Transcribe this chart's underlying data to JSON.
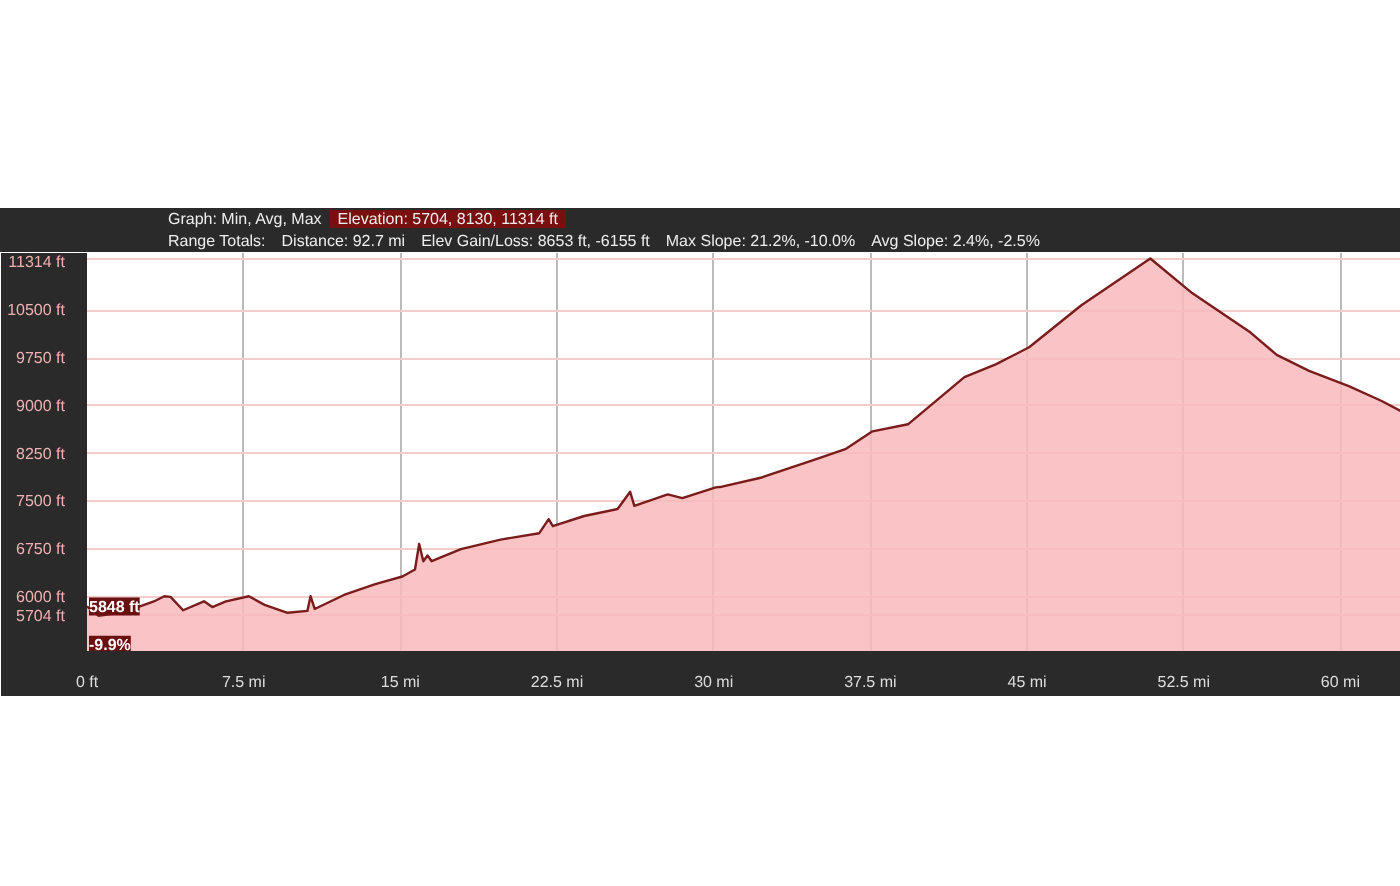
{
  "chart_data": {
    "type": "area",
    "annotations": [
      "Graph: Min, Avg, Max",
      "Elevation: 5704, 8130, 11314 ft",
      "Range Totals:",
      "Distance: 92.7 mi",
      "Elev Gain/Loss: 8653 ft, -6155 ft",
      "Max Slope: 21.2%, -10.0%",
      "Avg Slope: 2.4%, -2.5%",
      {
        "text": "5848 ft",
        "x": 0,
        "y": 5848
      },
      {
        "text": "-9.9%",
        "x": 0,
        "y": 5250
      }
    ],
    "x": [
      0,
      0.56,
      1.35,
      2.3,
      3.2,
      3.7,
      4.0,
      4.6,
      5.6,
      6.0,
      6.65,
      7.75,
      8.5,
      9.6,
      10.55,
      10.7,
      10.9,
      12.3,
      13.8,
      15.1,
      15.7,
      15.9,
      16.1,
      16.3,
      16.5,
      17.9,
      19.8,
      21.65,
      22.1,
      22.3,
      23.8,
      25.4,
      26.0,
      26.2,
      27.8,
      28.5,
      30.1,
      30.4,
      32.3,
      34.8,
      36.3,
      37.6,
      39.3,
      42.0,
      43.5,
      45.1,
      47.6,
      50.9,
      52.9,
      55.7,
      56.95,
      58.5,
      60.4,
      61.95,
      62.9
    ],
    "series": [
      {
        "color": "#7b1c1c",
        "values": [
          5848,
          5704,
          5740,
          5822,
          5928,
          6010,
          6000,
          5790,
          5930,
          5840,
          5930,
          6010,
          5875,
          5750,
          5780,
          6010,
          5810,
          6030,
          6200,
          6320,
          6430,
          6830,
          6560,
          6650,
          6560,
          6750,
          6900,
          7000,
          7220,
          7110,
          7270,
          7380,
          7650,
          7430,
          7610,
          7550,
          7720,
          7730,
          7875,
          8150,
          8320,
          8600,
          8710,
          9450,
          9650,
          9920,
          10580,
          11314,
          10770,
          10150,
          9800,
          9550,
          9310,
          9080,
          8915
        ]
      }
    ],
    "xlim": [
      0,
      62.9
    ],
    "ylim": [
      5150,
      11400
    ],
    "xticks": [
      {
        "value": 0,
        "label": "0 ft"
      },
      {
        "value": 7.5,
        "label": "7.5 mi"
      },
      {
        "value": 15,
        "label": "15 mi"
      },
      {
        "value": 22.5,
        "label": "22.5 mi"
      },
      {
        "value": 30,
        "label": "30 mi"
      },
      {
        "value": 37.5,
        "label": "37.5 mi"
      },
      {
        "value": 45,
        "label": "45 mi"
      },
      {
        "value": 52.5,
        "label": "52.5 mi"
      },
      {
        "value": 60,
        "label": "60 mi"
      }
    ],
    "yticks": [
      {
        "value": 5704,
        "label": "5704 ft"
      },
      {
        "value": 6000,
        "label": "6000 ft"
      },
      {
        "value": 6750,
        "label": "6750 ft"
      },
      {
        "value": 7500,
        "label": "7500 ft"
      },
      {
        "value": 8250,
        "label": "8250 ft"
      },
      {
        "value": 9000,
        "label": "9000 ft"
      },
      {
        "value": 9750,
        "label": "9750 ft"
      },
      {
        "value": 10500,
        "label": "10500 ft"
      },
      {
        "value": 11314,
        "label": "11314 ft"
      }
    ],
    "grid": true
  }
}
